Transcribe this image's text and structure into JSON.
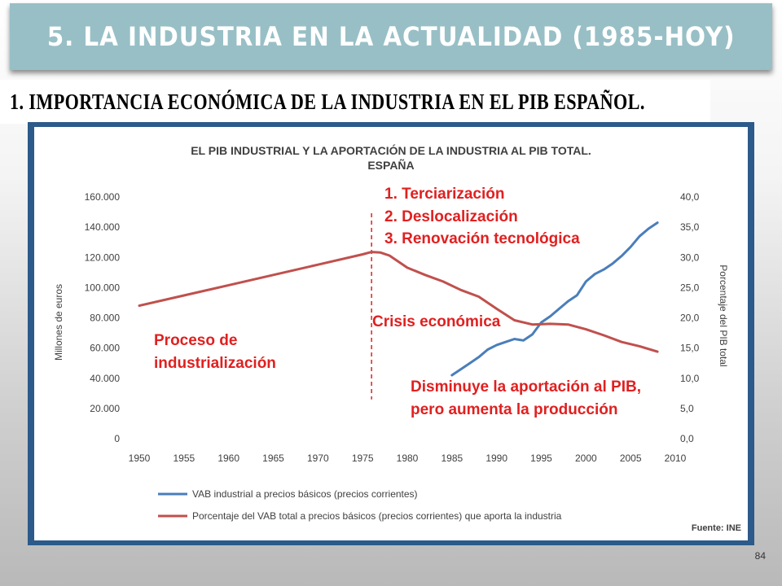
{
  "slide": {
    "title": "5. LA INDUSTRIA EN LA ACTUALIDAD (1985-HOY)",
    "subtitle": "1. IMPORTANCIA ECONÓMICA DE LA INDUSTRIA EN EL PIB ESPAÑOL.",
    "page_number": "84"
  },
  "chart_data": {
    "type": "line",
    "title_line1": "EL PIB INDUSTRIAL Y LA APORTACIÓN DE LA INDUSTRIA  AL PIB TOTAL.",
    "title_line2": "ESPAÑA",
    "ylabel_left": "Millones de euros",
    "ylabel_right": "Porcentaje del PIB total",
    "xlim": [
      1950,
      2010
    ],
    "ylim_left": [
      0,
      160000
    ],
    "ylim_right": [
      0,
      40
    ],
    "x_ticks": [
      "1950",
      "1955",
      "1960",
      "1965",
      "1970",
      "1975",
      "1980",
      "1985",
      "1990",
      "1995",
      "2000",
      "2005",
      "2010"
    ],
    "y_left_ticks": [
      "0",
      "20.000",
      "40.000",
      "60.000",
      "80.000",
      "100.000",
      "120.000",
      "140.000",
      "160.000"
    ],
    "y_right_ticks": [
      "0,0",
      "5,0",
      "10,0",
      "15,0",
      "20,0",
      "25,0",
      "30,0",
      "35,0",
      "40,0"
    ],
    "grid": false,
    "legend_position": "bottom",
    "source": "Fuente: INE",
    "series": [
      {
        "name": "VAB industrial a precios básicos (precios corrientes)",
        "axis": "left",
        "color": "#4a7ebb",
        "x": [
          1985,
          1986,
          1987,
          1988,
          1989,
          1990,
          1991,
          1992,
          1993,
          1994,
          1995,
          1996,
          1997,
          1998,
          1999,
          2000,
          2001,
          2002,
          2003,
          2004,
          2005,
          2006,
          2007,
          2008
        ],
        "values": [
          42000,
          46000,
          50000,
          54000,
          59000,
          62000,
          64000,
          66000,
          65000,
          69000,
          77000,
          81000,
          86000,
          91000,
          95000,
          104000,
          109000,
          112000,
          116000,
          121000,
          127000,
          134000,
          139000,
          143000
        ]
      },
      {
        "name": "Porcentaje del VAB total a precios básicos (precios corrientes) que aporta la industria",
        "axis": "right",
        "color": "#c0504d",
        "x": [
          1950,
          1955,
          1960,
          1965,
          1970,
          1975,
          1976,
          1977,
          1978,
          1980,
          1982,
          1984,
          1986,
          1988,
          1990,
          1992,
          1994,
          1996,
          1998,
          2000,
          2002,
          2004,
          2006,
          2008
        ],
        "values": [
          22.0,
          23.7,
          25.4,
          27.1,
          28.8,
          30.5,
          30.9,
          30.8,
          30.3,
          28.3,
          27.1,
          26.0,
          24.6,
          23.5,
          21.5,
          19.6,
          18.9,
          19.0,
          18.9,
          18.1,
          17.1,
          16.0,
          15.3,
          14.4
        ]
      }
    ],
    "annotations": {
      "factors": [
        "1.  Terciarización",
        "2.  Deslocalización",
        "3.  Renovación tecnológica"
      ],
      "industrialization": [
        "Proceso de",
        "industrialización"
      ],
      "crisis": "Crisis económica",
      "decline": [
        "Disminuye la aportación al PIB,",
        "pero aumenta la producción"
      ]
    },
    "annotation_color": "#e02020",
    "marker_year": 1976
  }
}
